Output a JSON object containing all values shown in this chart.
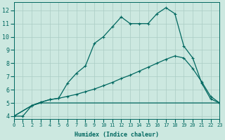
{
  "xlabel": "Humidex (Indice chaleur)",
  "xlim": [
    0,
    23
  ],
  "ylim": [
    3.8,
    12.6
  ],
  "xticks": [
    0,
    1,
    2,
    3,
    4,
    5,
    6,
    7,
    8,
    9,
    10,
    11,
    12,
    13,
    14,
    15,
    16,
    17,
    18,
    19,
    20,
    21,
    22,
    23
  ],
  "yticks": [
    4,
    5,
    6,
    7,
    8,
    9,
    10,
    11,
    12
  ],
  "bg_color": "#cce8e0",
  "grid_color": "#aaccc4",
  "line_color": "#006860",
  "line1_x": [
    0,
    1,
    2,
    3,
    4,
    5,
    6,
    7,
    8,
    9,
    10,
    11,
    12,
    13,
    14,
    15,
    16,
    17,
    18,
    19,
    20,
    21,
    22,
    23
  ],
  "line1_y": [
    4.0,
    4.0,
    4.8,
    5.05,
    5.25,
    5.35,
    6.5,
    7.25,
    7.8,
    9.5,
    10.0,
    10.75,
    11.5,
    11.0,
    11.0,
    11.0,
    11.75,
    12.2,
    11.75,
    9.3,
    8.4,
    6.5,
    5.3,
    5.0
  ],
  "line2_x": [
    0,
    2,
    3,
    4,
    5,
    6,
    7,
    8,
    9,
    10,
    11,
    12,
    13,
    14,
    15,
    16,
    17,
    18,
    19,
    20,
    21,
    22,
    23
  ],
  "line2_y": [
    4.0,
    4.8,
    5.05,
    5.25,
    5.35,
    5.5,
    5.65,
    5.85,
    6.05,
    6.3,
    6.55,
    6.85,
    7.1,
    7.4,
    7.7,
    8.0,
    8.3,
    8.55,
    8.4,
    7.6,
    6.6,
    5.5,
    5.0
  ],
  "line3_x": [
    0,
    2,
    3,
    22,
    23
  ],
  "line3_y": [
    4.0,
    4.8,
    5.0,
    5.0,
    5.0
  ]
}
